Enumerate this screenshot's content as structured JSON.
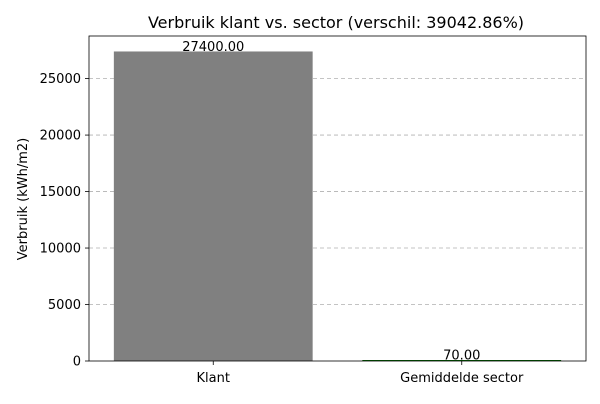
{
  "chart_data": {
    "type": "bar",
    "title": "Verbruik klant vs. sector (verschil: 39042.86%)",
    "xlabel": "",
    "ylabel": "Verbruik (kWh/m2)",
    "categories": [
      "Klant",
      "Gemiddelde sector"
    ],
    "values": [
      27400.0,
      70.0
    ],
    "value_labels": [
      "27400.00",
      "70.00"
    ],
    "bar_colors": [
      "#808080",
      "#006400"
    ],
    "ylim": [
      0,
      28770
    ],
    "yticks": [
      0,
      5000,
      10000,
      15000,
      20000,
      25000
    ],
    "ytick_labels": [
      "0",
      "5000",
      "10000",
      "15000",
      "20000",
      "25000"
    ],
    "grid": "y-dashed",
    "legend": "none"
  }
}
